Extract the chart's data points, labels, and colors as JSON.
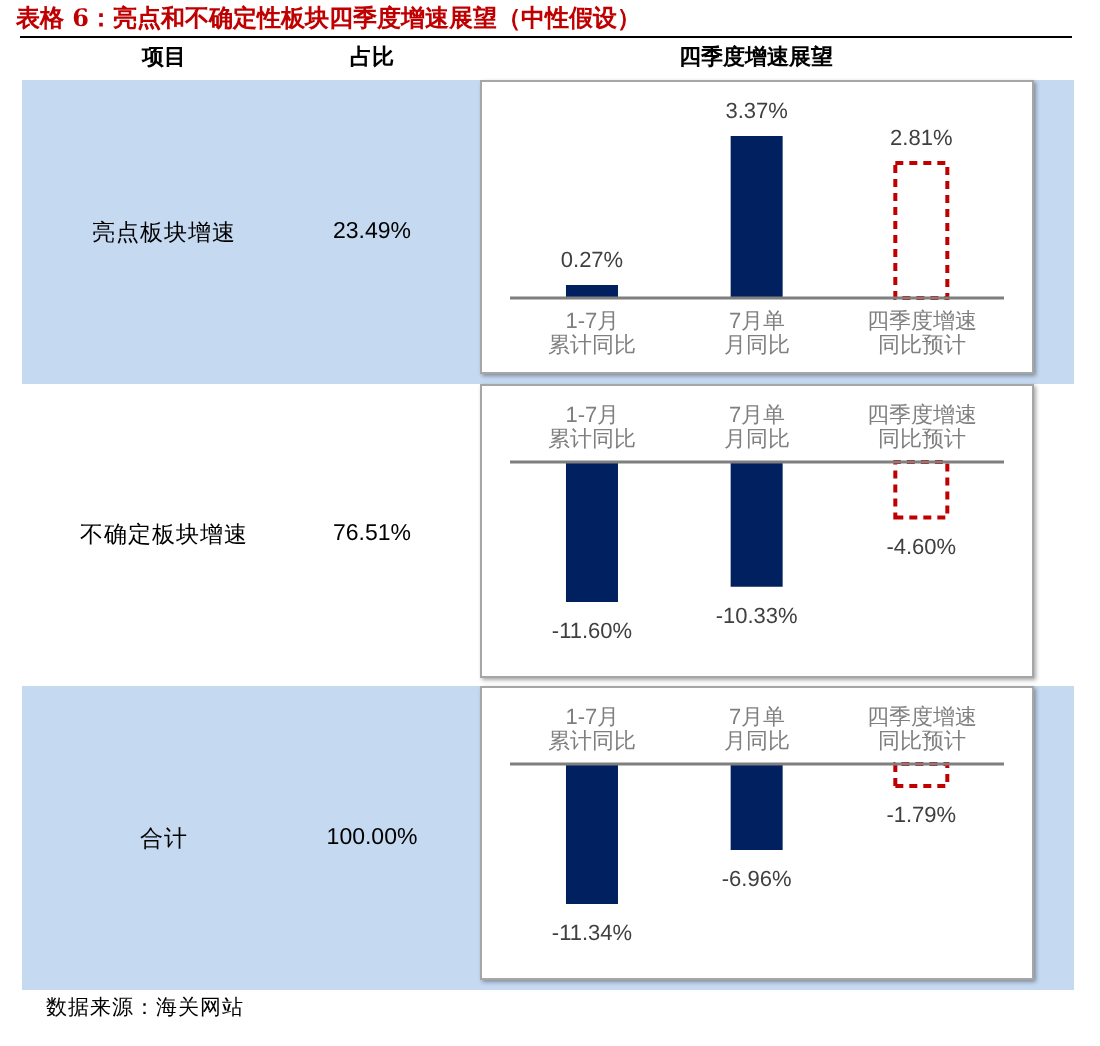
{
  "chart_data": [
    {
      "type": "other",
      "title": "表格 6：亮点和不确定性板块四季度增速展望（中性假设）",
      "annotations": [
        "项目",
        "占比",
        "四季度增速展望"
      ]
    },
    {
      "type": "other",
      "annotations": [
        "亮点板块增速",
        "23.49%"
      ]
    },
    {
      "type": "bar",
      "categories": [
        "1-7月累计同比",
        "7月单月同比",
        "四季度增速同比预计"
      ],
      "series": [
        {
          "color": "#002060",
          "values": [
            0.27,
            3.37,
            null
          ],
          "value_labels": [
            "0.27%",
            "3.37%",
            null
          ]
        },
        {
          "color": "#c00000",
          "values": [
            null,
            null,
            2.81
          ],
          "value_labels": [
            null,
            null,
            "2.81%"
          ],
          "line_style": "dashed"
        }
      ],
      "stacked": true,
      "tick_labels": "x"
    },
    {
      "type": "other",
      "annotations": [
        "不确定板块增速",
        "76.51%"
      ]
    },
    {
      "type": "bar",
      "categories": [
        "1-7月累计同比",
        "7月单月同比",
        "四季度增速同比预计"
      ],
      "series": [
        {
          "color": "#002060",
          "values": [
            -11.6,
            -10.33,
            null
          ],
          "value_labels": [
            "-11.60%",
            "-10.33%",
            null
          ]
        },
        {
          "color": "#c00000",
          "values": [
            null,
            null,
            -4.6
          ],
          "value_labels": [
            null,
            null,
            "-4.60%"
          ],
          "line_style": "dashed"
        }
      ],
      "stacked": true,
      "tick_labels": "x"
    },
    {
      "type": "other",
      "annotations": [
        "合计",
        "100.00%"
      ]
    },
    {
      "type": "bar",
      "categories": [
        "1-7月累计同比",
        "7月单月同比",
        "四季度增速同比预计"
      ],
      "series": [
        {
          "color": "#002060",
          "values": [
            -11.34,
            -6.96,
            null
          ],
          "value_labels": [
            "-11.34%",
            "-6.96%",
            null
          ]
        },
        {
          "color": "#c00000",
          "values": [
            null,
            null,
            -1.79
          ],
          "value_labels": [
            null,
            null,
            "-1.79%"
          ],
          "line_style": "dashed"
        }
      ],
      "stacked": true,
      "tick_labels": "x"
    },
    {
      "type": "other",
      "annotations": [
        "数据来源：海关网站"
      ]
    }
  ]
}
